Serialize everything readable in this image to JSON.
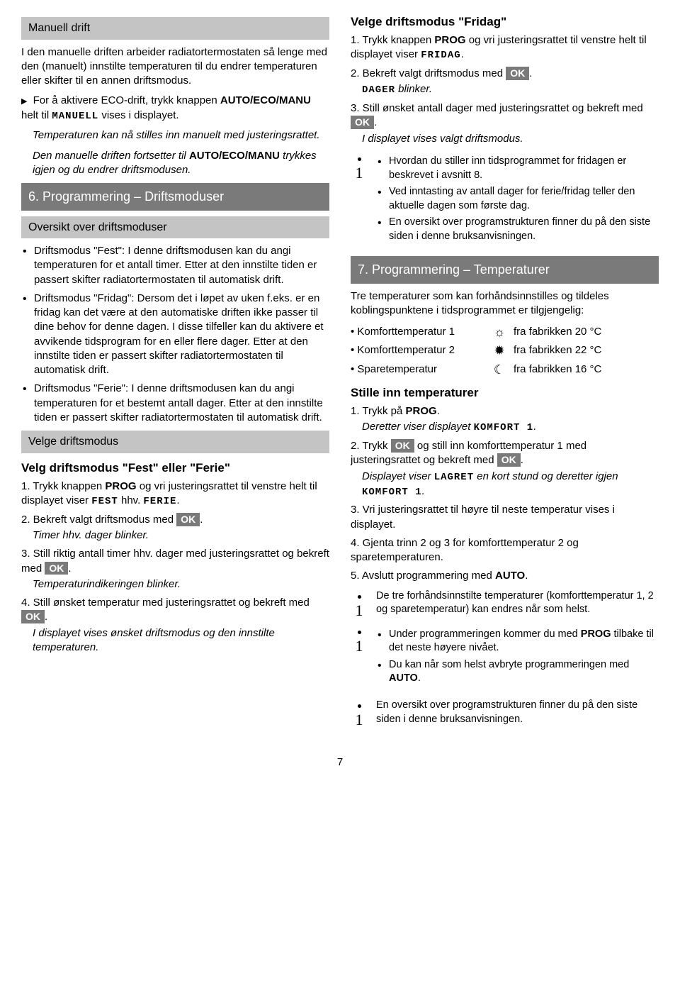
{
  "left": {
    "h_manuell": "Manuell drift",
    "p1": "I den manuelle driften arbeider radiatortermostaten så lenge med den (manuelt) innstilte temperaturen til du endrer temperaturen eller skifter til en annen driftsmodus.",
    "p2a": "For å aktivere ECO-drift, trykk knappen ",
    "p2b": "AUTO/ECO/MANU",
    "p2c": " helt til ",
    "p2d": "MANUELL",
    "p2e": " vises i displayet.",
    "p3": "Temperaturen kan nå stilles inn manuelt med justeringsrattet.",
    "p4a": "Den manuelle driften fortsetter til ",
    "p4b": "AUTO/ECO/MANU",
    "p4c": " trykkes igjen og du endrer driftsmodusen.",
    "h6": "6. Programmering – Driftsmoduser",
    "h_oversikt": "Oversikt over driftsmoduser",
    "b1": "Driftsmodus \"Fest\": I denne driftsmodusen kan du angi temperaturen for et antall timer. Etter at den innstilte tiden er passert skifter radiatortermostaten til automatisk drift.",
    "b2": "Driftsmodus \"Fridag\": Dersom det i løpet av uken f.eks. er en fridag kan det være at den automatiske driften ikke passer til dine behov for denne dagen. I disse tilfeller kan du aktivere et avvikende tidsprogram for en eller flere dager. Etter at den innstilte tiden er passert skifter radiatortermostaten til automatisk drift.",
    "b3": "Driftsmodus \"Ferie\": I denne driftsmodusen kan du angi temperaturen for et bestemt antall dager. Etter at den innstilte tiden er passert skifter radiatortermostaten til automatisk drift.",
    "h_velge": "Velge driftsmodus",
    "h_fest": "Velg driftsmodus \"Fest\" eller \"Ferie\"",
    "s1a": "1. Trykk knappen ",
    "s1b": "PROG",
    "s1c": " og vri justeringsrattet til venstre helt til displayet viser ",
    "s1d": "FEST",
    "s1e": " hhv. ",
    "s1f": "FERIE",
    "s1g": ".",
    "s2a": "2. Bekreft valgt driftsmodus med ",
    "s2b": ".",
    "s2sub": "Timer hhv. dager blinker.",
    "s3a": "3. Still riktig antall timer hhv. dager med justeringsrattet og bekreft med ",
    "s3b": ".",
    "s3sub": "Temperaturindikeringen blinker.",
    "s4a": "4. Still ønsket temperatur med justeringsrattet og bekreft med ",
    "s4b": ".",
    "s4sub": "I displayet vises ønsket driftsmodus og den innstilte temperaturen."
  },
  "right": {
    "h_fridag": "Velge driftsmodus \"Fridag\"",
    "f1a": "1. Trykk knappen ",
    "f1b": "PROG",
    "f1c": " og vri justeringsrattet til venstre helt til displayet viser ",
    "f1d": "FRIDAG",
    "f1e": ".",
    "f2a": "2. Bekreft valgt driftsmodus med ",
    "f2b": ".",
    "f2suba": "DAGER",
    "f2subb": " blinker.",
    "f3a": "3. Still ønsket antall dager med justeringsrattet og bekreft med ",
    "f3b": ".",
    "f3sub": "I displayet vises valgt driftsmodus.",
    "info1_b1": "Hvordan du stiller inn tidsprogrammet for fridagen er beskrevet i avsnitt 8.",
    "info1_b2": "Ved inntasting av antall dager for ferie/fridag teller den aktuelle dagen som første dag.",
    "info1_b3": "En oversikt over programstrukturen finner du på den siste siden i denne bruksanvisningen.",
    "h7": "7. Programmering – Temperaturer",
    "p_tre": "Tre temperaturer som kan forhåndsinnstilles og tildeles koblingspunktene i tidsprogrammet er tilgjengelig:",
    "t1l": "• Komforttemperatur 1",
    "t1i": "☼",
    "t1v": "fra fabrikken 20 °C",
    "t2l": "• Komforttemperatur 2",
    "t2i": "✹",
    "t2v": "fra fabrikken 22 °C",
    "t3l": "• Sparetemperatur",
    "t3i": "☾",
    "t3v": "fra fabrikken 16 °C",
    "h_stille": "Stille inn temperaturer",
    "st1a": "1. Trykk på ",
    "st1b": "PROG",
    "st1c": ".",
    "st1suba": "Deretter viser displayet ",
    "st1subb": "KOMFORT 1",
    "st1subc": ".",
    "st2a": "2. Trykk ",
    "st2b": " og still inn komforttemperatur 1 med justeringsrattet og bekreft med ",
    "st2c": ".",
    "st2suba": "Displayet viser ",
    "st2subb": "LAGRET",
    "st2subc": " en kort stund og deretter igjen ",
    "st2subd": "KOMFORT 1",
    "st2sube": ".",
    "st3": "3. Vri justeringsrattet til høyre til neste temperatur vises i displayet.",
    "st4": "4. Gjenta trinn 2 og 3 for komforttemperatur 2 og sparetemperaturen.",
    "st5a": "5. Avslutt programmering med ",
    "st5b": "AUTO",
    "st5c": ".",
    "info2": "De tre forhåndsinnstilte temperaturer (komforttemperatur 1, 2 og sparetemperatur) kan endres når som helst.",
    "info3_b1a": "Under programmeringen kommer du med ",
    "info3_b1b": "PROG",
    "info3_b1c": " tilbake til det neste høyere nivået.",
    "info3_b2a": "Du kan når som helst avbryte programmeringen med ",
    "info3_b2b": "AUTO",
    "info3_b2c": ".",
    "info4": "En oversikt over programstrukturen finner du på den siste siden i denne bruksanvisningen."
  },
  "ok": "OK",
  "page": "7"
}
